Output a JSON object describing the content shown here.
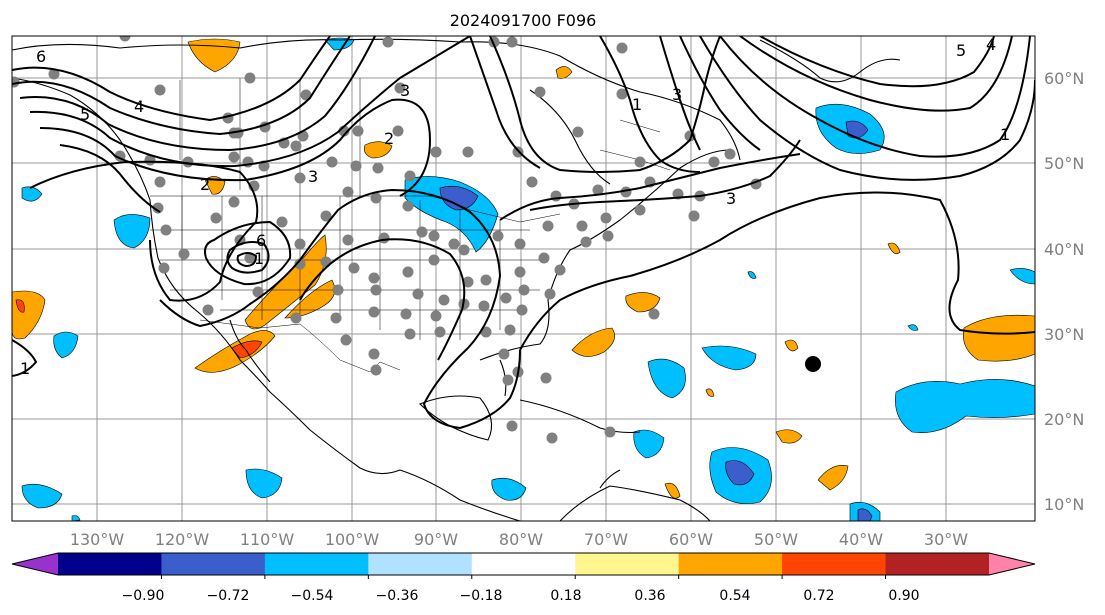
{
  "title": "2024091700 F096",
  "map": {
    "projection": "cylindrical",
    "lon_range": [
      -140,
      -15
    ],
    "lat_range": [
      8,
      66
    ],
    "lon_labels": [
      "130°W",
      "120°W",
      "110°W",
      "100°W",
      "90°W",
      "80°W",
      "70°W",
      "60°W",
      "50°W",
      "40°W",
      "30°W"
    ],
    "lat_labels": [
      "60°N",
      "50°N",
      "40°N",
      "30°N",
      "20°N",
      "10°N"
    ],
    "gridlines": true,
    "storm_marker_color": "#000000",
    "station_marker_color": "#808080",
    "contour_labels": [
      "6",
      "5",
      "4",
      "3",
      "2",
      "1",
      "3",
      "2",
      "1",
      "6",
      "5",
      "4",
      "3",
      "1",
      "3",
      "1"
    ]
  },
  "colorbar": {
    "ticks": [
      "−0.90",
      "−0.72",
      "−0.54",
      "−0.36",
      "−0.18",
      "0.18",
      "0.36",
      "0.54",
      "0.72",
      "0.90"
    ],
    "colors": [
      "#9932cc",
      "#00008b",
      "#3a5fcd",
      "#00bfff",
      "#b0e2ff",
      "#ffffff",
      "#fff68f",
      "#ffa500",
      "#ff4500",
      "#b22222",
      "#ff82ab"
    ]
  }
}
